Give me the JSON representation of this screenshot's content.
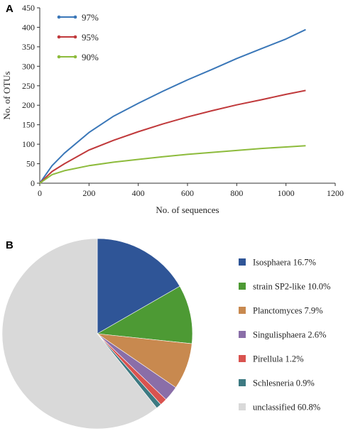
{
  "panels": [
    {
      "letter": "A"
    },
    {
      "letter": "B"
    }
  ],
  "chart_data": [
    {
      "type": "line",
      "title": "",
      "xlabel": "No. of sequences",
      "ylabel": "No. of OTUs",
      "xlim": [
        0,
        1200
      ],
      "ylim": [
        0,
        450
      ],
      "xticks": [
        0,
        200,
        400,
        600,
        800,
        1000,
        1200
      ],
      "yticks": [
        0,
        50,
        100,
        150,
        200,
        250,
        300,
        350,
        400,
        450
      ],
      "grid": false,
      "legend_position": "top-left",
      "series": [
        {
          "name": "97%",
          "color": "#3a77b8",
          "x": [
            0,
            50,
            100,
            200,
            300,
            400,
            500,
            600,
            700,
            800,
            900,
            1000,
            1080
          ],
          "y": [
            0,
            45,
            77,
            130,
            172,
            205,
            236,
            265,
            292,
            320,
            345,
            370,
            394
          ]
        },
        {
          "name": "95%",
          "color": "#c0393b",
          "x": [
            0,
            50,
            100,
            200,
            300,
            400,
            500,
            600,
            700,
            800,
            900,
            1000,
            1080
          ],
          "y": [
            0,
            30,
            50,
            85,
            110,
            132,
            152,
            170,
            186,
            201,
            214,
            228,
            238
          ]
        },
        {
          "name": "90%",
          "color": "#8dbb3c",
          "x": [
            0,
            50,
            100,
            200,
            300,
            400,
            500,
            600,
            700,
            800,
            900,
            1000,
            1080
          ],
          "y": [
            0,
            22,
            32,
            45,
            54,
            61,
            68,
            74,
            79,
            84,
            89,
            93,
            96
          ]
        }
      ]
    },
    {
      "type": "pie",
      "title": "",
      "legend_position": "right",
      "slices": [
        {
          "label": "Isosphaera 16.7%",
          "value": 16.7,
          "color": "#2f5597"
        },
        {
          "label": "strain SP2-like 10.0%",
          "value": 10.0,
          "color": "#4d9a34"
        },
        {
          "label": "Planctomyces 7.9%",
          "value": 7.9,
          "color": "#c8894f"
        },
        {
          "label": "Singulisphaera 2.6%",
          "value": 2.6,
          "color": "#8a6ea8"
        },
        {
          "label": "Pirellula 1.2%",
          "value": 1.2,
          "color": "#d9534f"
        },
        {
          "label": "Schlesneria 0.9%",
          "value": 0.9,
          "color": "#3d7a82"
        },
        {
          "label": "unclassified 60.8%",
          "value": 60.8,
          "color": "#d9d9d9"
        }
      ]
    }
  ]
}
